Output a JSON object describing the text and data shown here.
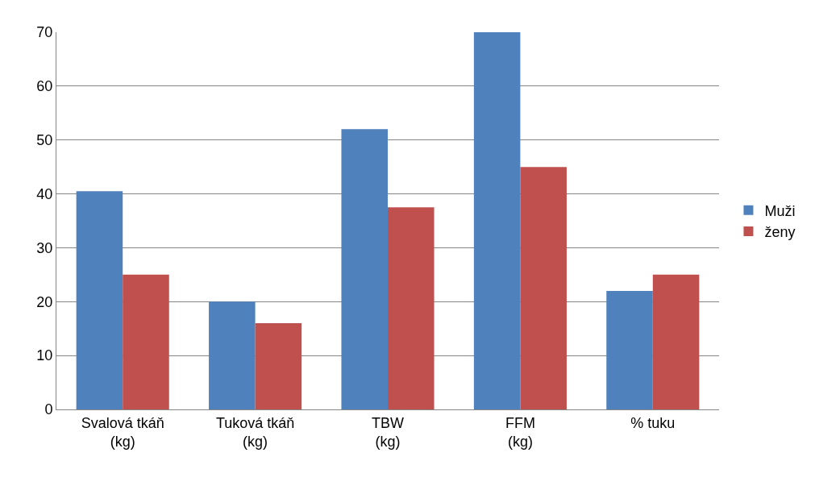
{
  "chart_data": {
    "type": "bar",
    "categories": [
      "Svalová tkáň (kg)",
      "Tuková tkáň (kg)",
      "TBW (kg)",
      "FFM (kg)",
      "% tuku"
    ],
    "series": [
      {
        "name": "Muži",
        "color": "#4f81bd",
        "values": [
          40.5,
          20,
          52,
          70,
          22
        ]
      },
      {
        "name": "ženy",
        "color": "#c0504d",
        "values": [
          25,
          16,
          37.5,
          45,
          25
        ]
      }
    ],
    "ylim": [
      0,
      70
    ],
    "yticks": [
      0,
      10,
      20,
      30,
      40,
      50,
      60,
      70
    ],
    "grid": "y",
    "legend": "right"
  }
}
